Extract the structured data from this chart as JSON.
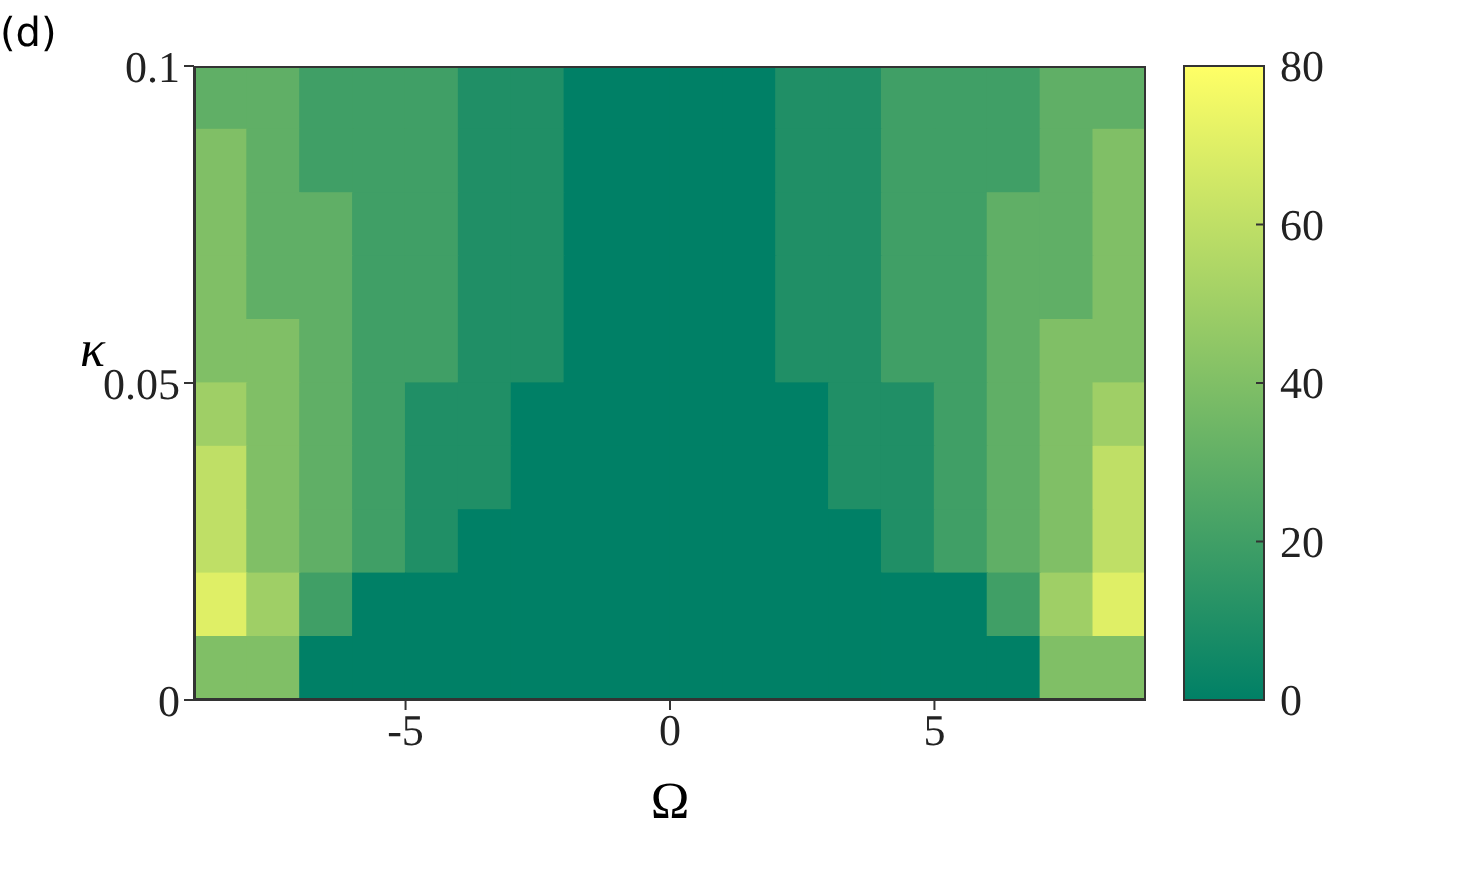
{
  "chart_data": {
    "type": "heatmap",
    "title": "(d)",
    "xlabel": "Ω",
    "ylabel": "κ",
    "xlim": [
      -9,
      9
    ],
    "xticks": [
      -5,
      0,
      5
    ],
    "ylim": [
      0,
      0.1
    ],
    "yticks": [
      0,
      0.05,
      0.1
    ],
    "clim": [
      0,
      80
    ],
    "cticks": [
      0,
      20,
      40,
      60,
      80
    ],
    "cells": [
      [
        30,
        30,
        20,
        20,
        20,
        10,
        10,
        0,
        0,
        0,
        0,
        10,
        10,
        20,
        20,
        20,
        30,
        30
      ],
      [
        40,
        30,
        20,
        20,
        20,
        10,
        10,
        0,
        0,
        0,
        0,
        10,
        10,
        20,
        20,
        20,
        30,
        40
      ],
      [
        40,
        30,
        30,
        20,
        20,
        10,
        10,
        0,
        0,
        0,
        0,
        10,
        10,
        20,
        20,
        30,
        30,
        40
      ],
      [
        40,
        30,
        30,
        20,
        20,
        10,
        10,
        0,
        0,
        0,
        0,
        10,
        10,
        20,
        20,
        30,
        30,
        40
      ],
      [
        40,
        40,
        30,
        20,
        20,
        10,
        10,
        0,
        0,
        0,
        0,
        10,
        10,
        20,
        20,
        30,
        40,
        40
      ],
      [
        50,
        40,
        30,
        20,
        10,
        10,
        0,
        0,
        0,
        0,
        0,
        0,
        10,
        10,
        20,
        30,
        40,
        50
      ],
      [
        60,
        40,
        30,
        20,
        10,
        10,
        0,
        0,
        0,
        0,
        0,
        0,
        10,
        10,
        20,
        30,
        40,
        60
      ],
      [
        60,
        40,
        30,
        20,
        10,
        0,
        0,
        0,
        0,
        0,
        0,
        0,
        0,
        10,
        20,
        30,
        40,
        60
      ],
      [
        70,
        50,
        20,
        0,
        0,
        0,
        0,
        0,
        0,
        0,
        0,
        0,
        0,
        0,
        0,
        20,
        50,
        70
      ],
      [
        40,
        40,
        0,
        0,
        0,
        0,
        0,
        0,
        0,
        0,
        0,
        0,
        0,
        0,
        0,
        0,
        40,
        40
      ]
    ]
  }
}
